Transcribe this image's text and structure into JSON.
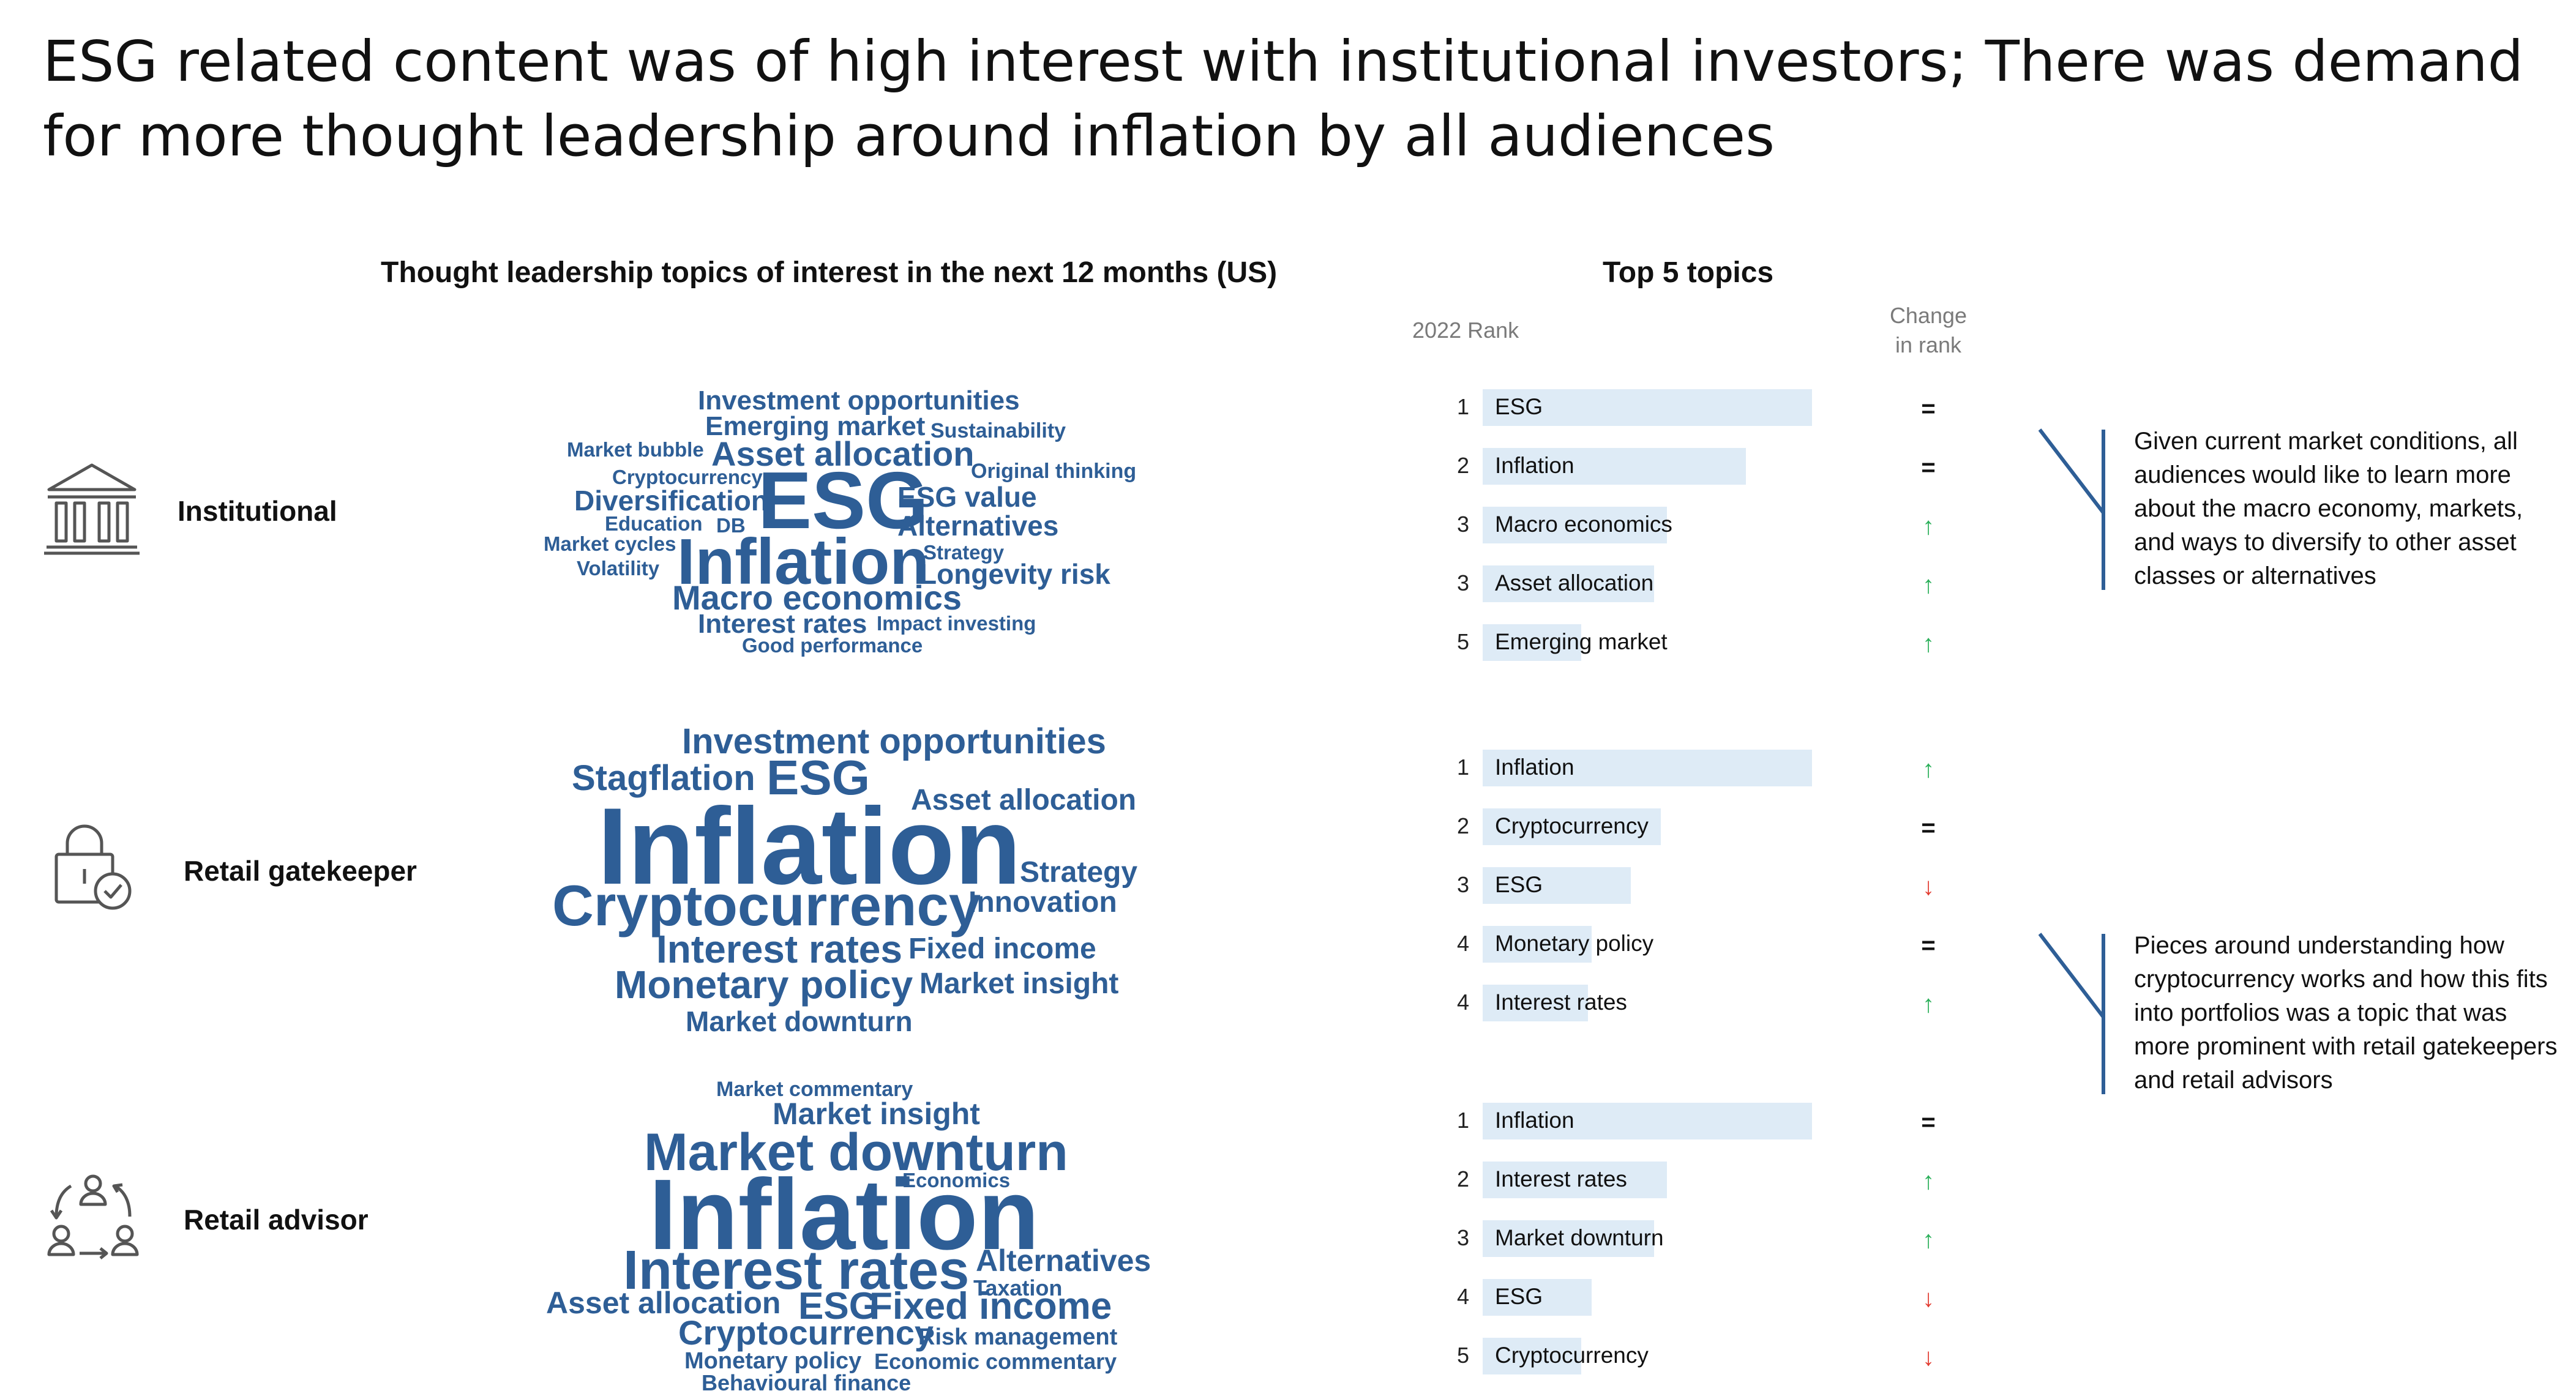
{
  "headline": "ESG related content was of high interest with institutional investors; There was demand for more thought leadership around inflation by all audiences",
  "colors": {
    "word_cloud": "#2e5e96",
    "bar_fill": "#deebf6",
    "up": "#2bb05a",
    "down": "#e23a2e",
    "same": "#111111",
    "note_line": "#2e5e96"
  },
  "chart_data": [
    {
      "type": "word_cloud",
      "title": "Thought leadership topics of interest in the next 12 months (US)",
      "audience": "Institutional",
      "icon": "institution-building-icon",
      "words": [
        {
          "text": "Investment opportunities",
          "weight": 2
        },
        {
          "text": "Emerging market",
          "weight": 2
        },
        {
          "text": "Sustainability",
          "weight": 1
        },
        {
          "text": "Market bubble",
          "weight": 1
        },
        {
          "text": "Asset allocation",
          "weight": 3
        },
        {
          "text": "Original thinking",
          "weight": 1
        },
        {
          "text": "Cryptocurrency",
          "weight": 1
        },
        {
          "text": "ESG",
          "weight": 6
        },
        {
          "text": "ESG value",
          "weight": 2
        },
        {
          "text": "Diversification",
          "weight": 2
        },
        {
          "text": "Education",
          "weight": 1
        },
        {
          "text": "DB",
          "weight": 1
        },
        {
          "text": "Alternatives",
          "weight": 2
        },
        {
          "text": "Market cycles",
          "weight": 1
        },
        {
          "text": "Strategy",
          "weight": 1
        },
        {
          "text": "Inflation",
          "weight": 5
        },
        {
          "text": "Volatility",
          "weight": 1
        },
        {
          "text": "Longevity risk",
          "weight": 2
        },
        {
          "text": "Macro economics",
          "weight": 3
        },
        {
          "text": "Interest rates",
          "weight": 2
        },
        {
          "text": "Impact investing",
          "weight": 1
        },
        {
          "text": "Good performance",
          "weight": 1
        }
      ]
    },
    {
      "type": "word_cloud",
      "audience": "Retail gatekeeper",
      "icon": "padlock-check-icon",
      "words": [
        {
          "text": "Investment opportunities",
          "weight": 3
        },
        {
          "text": "Stagflation",
          "weight": 3
        },
        {
          "text": "ESG",
          "weight": 4
        },
        {
          "text": "Asset allocation",
          "weight": 2
        },
        {
          "text": "Inflation",
          "weight": 8
        },
        {
          "text": "Strategy",
          "weight": 2
        },
        {
          "text": "Cryptocurrency",
          "weight": 5
        },
        {
          "text": "Innovation",
          "weight": 2
        },
        {
          "text": "Interest rates",
          "weight": 3
        },
        {
          "text": "Fixed income",
          "weight": 2
        },
        {
          "text": "Monetary policy",
          "weight": 3
        },
        {
          "text": "Market insight",
          "weight": 2
        },
        {
          "text": "Market downturn",
          "weight": 2
        }
      ]
    },
    {
      "type": "word_cloud",
      "audience": "Retail advisor",
      "icon": "people-cycle-icon",
      "words": [
        {
          "text": "Market commentary",
          "weight": 1
        },
        {
          "text": "Market insight",
          "weight": 2
        },
        {
          "text": "Market downturn",
          "weight": 4
        },
        {
          "text": "Economics",
          "weight": 1
        },
        {
          "text": "Inflation",
          "weight": 8
        },
        {
          "text": "Interest rates",
          "weight": 5
        },
        {
          "text": "Alternatives",
          "weight": 2
        },
        {
          "text": "Taxation",
          "weight": 1
        },
        {
          "text": "Asset allocation",
          "weight": 2
        },
        {
          "text": "ESG",
          "weight": 3
        },
        {
          "text": "Fixed income",
          "weight": 3
        },
        {
          "text": "Cryptocurrency",
          "weight": 3
        },
        {
          "text": "Risk management",
          "weight": 1
        },
        {
          "text": "Monetary policy",
          "weight": 1
        },
        {
          "text": "Economic commentary",
          "weight": 1
        },
        {
          "text": "Behavioural finance",
          "weight": 1
        }
      ]
    },
    {
      "type": "bar",
      "title": "Top 5 topics",
      "col_rank": "2022 Rank",
      "col_change": "Change in rank",
      "groups": [
        {
          "audience": "Institutional",
          "items": [
            {
              "rank": "1",
              "topic": "ESG",
              "value": 100,
              "change": "="
            },
            {
              "rank": "2",
              "topic": "Inflation",
              "value": 80,
              "change": "="
            },
            {
              "rank": "3",
              "topic": "Macro economics",
              "value": 56,
              "change": "↑"
            },
            {
              "rank": "3",
              "topic": "Asset allocation",
              "value": 52,
              "change": "↑"
            },
            {
              "rank": "5",
              "topic": "Emerging market",
              "value": 30,
              "change": "↑"
            }
          ]
        },
        {
          "audience": "Retail gatekeeper",
          "items": [
            {
              "rank": "1",
              "topic": "Inflation",
              "value": 100,
              "change": "↑"
            },
            {
              "rank": "2",
              "topic": "Cryptocurrency",
              "value": 54,
              "change": "="
            },
            {
              "rank": "3",
              "topic": "ESG",
              "value": 45,
              "change": "↓"
            },
            {
              "rank": "4",
              "topic": "Monetary policy",
              "value": 33,
              "change": "="
            },
            {
              "rank": "4",
              "topic": "Interest rates",
              "value": 32,
              "change": "↑"
            }
          ]
        },
        {
          "audience": "Retail advisor",
          "items": [
            {
              "rank": "1",
              "topic": "Inflation",
              "value": 100,
              "change": "="
            },
            {
              "rank": "2",
              "topic": "Interest rates",
              "value": 56,
              "change": "↑"
            },
            {
              "rank": "3",
              "topic": "Market downturn",
              "value": 52,
              "change": "↑"
            },
            {
              "rank": "4",
              "topic": "ESG",
              "value": 33,
              "change": "↓"
            },
            {
              "rank": "5",
              "topic": "Cryptocurrency",
              "value": 30,
              "change": "↓"
            }
          ]
        }
      ]
    }
  ],
  "notes": [
    "Given current market conditions, all audiences would like to learn more about the macro economy, markets, and ways to diversify to other asset classes or alternatives",
    "Pieces around understanding how cryptocurrency works and how this fits into portfolios was a topic that was more prominent with retail gatekeepers and retail advisors"
  ]
}
